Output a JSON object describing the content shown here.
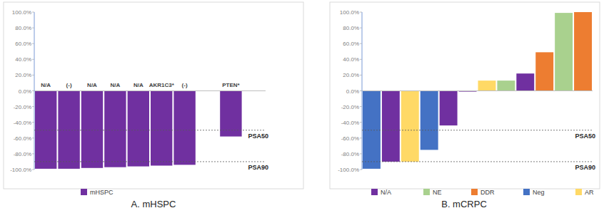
{
  "chart_data": [
    {
      "type": "bar",
      "title": "A. mHSPC",
      "categories": [
        "N/A",
        "(-)",
        "N/A",
        "N/A",
        "N/A",
        "AKR1C3*",
        "(-)",
        null,
        "PTEN*",
        null
      ],
      "series": [
        {
          "name": "mHSPC",
          "color": "#7030a0",
          "values": [
            -99,
            -99,
            -98,
            -97,
            -96,
            -95,
            -94,
            null,
            -58,
            null
          ]
        }
      ],
      "ylim": [
        -100,
        100
      ],
      "yticks": [
        {
          "value": -100,
          "label": "-100.0%"
        },
        {
          "value": -80,
          "label": "-80.0%"
        },
        {
          "value": -60,
          "label": "-60.0%"
        },
        {
          "value": -40,
          "label": "-40.0%"
        },
        {
          "value": -20,
          "label": "-20.0%"
        },
        {
          "value": 0,
          "label": "0.0%"
        },
        {
          "value": 20,
          "label": "20.0%"
        },
        {
          "value": 40,
          "label": "40.0%"
        },
        {
          "value": 60,
          "label": "60.0%"
        },
        {
          "value": 80,
          "label": "80.0%"
        },
        {
          "value": 100,
          "label": "100.0%"
        }
      ],
      "annotations": [
        {
          "text": "PSA50",
          "y": -50
        },
        {
          "text": "PSA90",
          "y": -90
        }
      ],
      "grid": false,
      "legend": "bottom",
      "stacked": false
    },
    {
      "type": "bar",
      "title": "B. mCRPC",
      "categories": [
        null,
        null,
        null,
        null,
        null,
        null,
        null,
        null,
        null,
        null,
        null,
        null
      ],
      "series": [
        {
          "name": "N/A",
          "color": "#7030a0",
          "values": [
            null,
            -90,
            null,
            null,
            -44,
            -1,
            null,
            null,
            22,
            null,
            null,
            null
          ]
        },
        {
          "name": "NE",
          "color": "#a9d18e",
          "values": [
            null,
            null,
            null,
            null,
            null,
            null,
            null,
            13,
            null,
            null,
            99,
            null
          ]
        },
        {
          "name": "DDR",
          "color": "#ed7d31",
          "values": [
            null,
            null,
            null,
            null,
            null,
            null,
            null,
            null,
            null,
            49,
            null,
            100
          ]
        },
        {
          "name": "Neg",
          "color": "#4472c4",
          "values": [
            -99,
            null,
            null,
            -75,
            null,
            null,
            null,
            null,
            null,
            null,
            null,
            null
          ]
        },
        {
          "name": "AR",
          "color": "#ffd966",
          "values": [
            null,
            null,
            -90,
            null,
            null,
            null,
            13,
            null,
            null,
            null,
            null,
            null
          ]
        }
      ],
      "ylim": [
        -100,
        100
      ],
      "yticks": [
        {
          "value": -100,
          "label": "-100.0%"
        },
        {
          "value": -80,
          "label": "-80.0%"
        },
        {
          "value": -60,
          "label": "-60.0%"
        },
        {
          "value": -40,
          "label": "-40.0%"
        },
        {
          "value": -20,
          "label": "-20.0%"
        },
        {
          "value": 0,
          "label": "0.0%"
        },
        {
          "value": 20,
          "label": "20.0%"
        },
        {
          "value": 40,
          "label": "40.0%"
        },
        {
          "value": 60,
          "label": "60.0%"
        },
        {
          "value": 80,
          "label": "80.0%"
        },
        {
          "value": 100,
          "label": "100.0%"
        }
      ],
      "annotations": [
        {
          "text": "PSA50",
          "y": -50
        },
        {
          "text": "PSA90",
          "y": -90
        }
      ],
      "grid": false,
      "legend": "bottom",
      "stacked": true
    }
  ]
}
